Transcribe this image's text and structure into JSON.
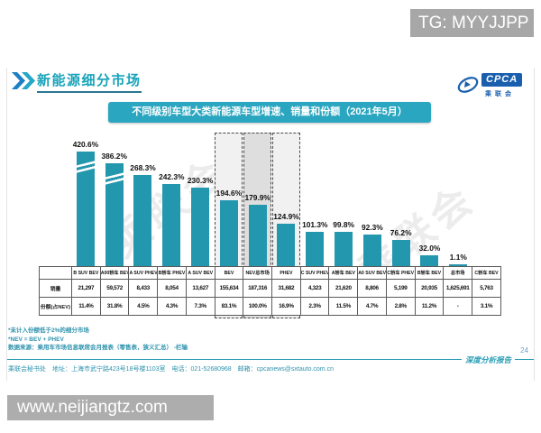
{
  "colors": {
    "bar": "#2397ae",
    "banner": "#2ba6c0",
    "accent": "#2a9db5",
    "highlight_fill_light": "#f1f1f1",
    "highlight_fill_dark": "#dedede",
    "total_header_fill": "#b3c4d6",
    "logo_blue": "#1a5fae"
  },
  "overlays": {
    "tg_text": "TG: MYYJJPP",
    "site_text": "www.neijiangtz.com"
  },
  "header": {
    "section_title": "新能源细分市场",
    "logo_main": "CPCA",
    "logo_sub": "乘联会"
  },
  "banner_title": "不同级别车型大类新能源车型增速、销量和份额（2021年5月）",
  "watermark_text": "乘联会",
  "chart_data": {
    "type": "bar",
    "title": "不同级别车型大类新能源车型增速、销量和份额（2021年5月）",
    "categories": [
      "B SUV BEV",
      "A00轿车 BEV",
      "A SUV PHEV",
      "B轿车 PHEV",
      "A SUV BEV",
      "BEV",
      "NEV总市场",
      "PHEV",
      "C SUV PHEV",
      "A轿车 BEV",
      "A0 SUV BEV",
      "C轿车 PHEV",
      "B轿车 BEV",
      "总市场",
      "C轿车 BEV"
    ],
    "series": [
      {
        "name": "增速",
        "values": [
          420.6,
          386.2,
          268.3,
          242.3,
          230.3,
          194.6,
          179.9,
          124.9,
          101.3,
          99.8,
          92.3,
          76.2,
          32.0,
          1.1,
          null
        ]
      }
    ],
    "value_suffix": "%",
    "broken_axis_indices": [
      0,
      1
    ],
    "highlight_boxes": [
      {
        "index": 5,
        "fill": "#f1f1f1"
      },
      {
        "index": 6,
        "fill": "#dedede"
      },
      {
        "index": 7,
        "fill": "#f1f1f1"
      }
    ],
    "total_column_index": 13,
    "table": {
      "row_labels": [
        "销量",
        "份额(占NEV)"
      ],
      "sales": [
        "21,297",
        "59,572",
        "8,433",
        "8,054",
        "13,627",
        "155,634",
        "187,316",
        "31,682",
        "4,323",
        "21,620",
        "8,806",
        "5,199",
        "20,935",
        "1,625,691",
        "5,763"
      ],
      "share": [
        "11.4%",
        "31.8%",
        "4.5%",
        "4.3%",
        "7.3%",
        "83.1%",
        "100.0%",
        "16.9%",
        "2.3%",
        "11.5%",
        "4.7%",
        "2.8%",
        "11.2%",
        "-",
        "3.1%"
      ]
    }
  },
  "notes": [
    "*未计入份额低于2%的细分市场",
    "*NEV = BEV + PHEV",
    "数据来源：乘用车市场信息联席会月报表（零售表，狭义汇总） -栏输"
  ],
  "footer": {
    "page_number": "24",
    "report_label": "深度分析报告",
    "contact": "乘联会秘书处　地址：上海市武宁路423号18号楼1103室　电话：021-52680968　邮箱：cpcanews@sxtauto.com.cn"
  }
}
